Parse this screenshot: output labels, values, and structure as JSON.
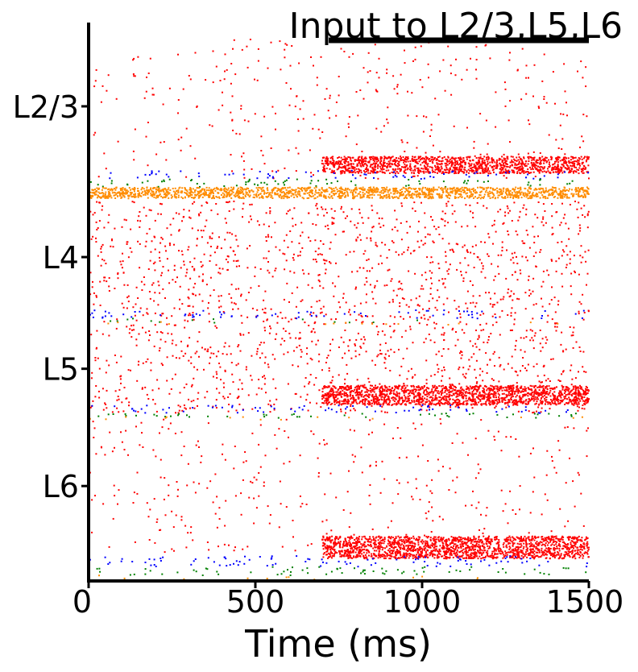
{
  "chart_data": {
    "type": "scatter",
    "title": "Input to L2/3,L5,L6",
    "xlabel": "Time (ms)",
    "ylabel": "",
    "xlim": [
      0,
      1500
    ],
    "ylim": [
      0,
      100
    ],
    "x_ticks": [
      0,
      500,
      1000,
      1500
    ],
    "y_ticks": [
      {
        "value": 85,
        "label": "L2/3"
      },
      {
        "value": 58,
        "label": "L4"
      },
      {
        "value": 38,
        "label": "L5"
      },
      {
        "value": 17,
        "label": "L6"
      }
    ],
    "stimulus_bar": {
      "start": 720,
      "end": 1500
    },
    "colors": {
      "red": "#ff0000",
      "blue": "#0000ff",
      "green": "#008000",
      "orange": "#ff8c00"
    },
    "series": [
      {
        "color": "red",
        "y_range": [
          72,
          97
        ],
        "t_range": [
          0,
          1500
        ],
        "density": "sparse"
      },
      {
        "color": "red",
        "y_range": [
          73,
          76
        ],
        "t_range": [
          700,
          1500
        ],
        "density": "dense"
      },
      {
        "color": "blue",
        "y_range": [
          72,
          73.5
        ],
        "t_range": [
          0,
          1500
        ],
        "density": "medium"
      },
      {
        "color": "green",
        "y_range": [
          70.5,
          72
        ],
        "t_range": [
          0,
          1500
        ],
        "density": "medium"
      },
      {
        "color": "orange",
        "y_range": [
          68.5,
          70.5
        ],
        "t_range": [
          0,
          1500
        ],
        "density": "dense"
      },
      {
        "color": "red",
        "y_range": [
          46,
          68
        ],
        "t_range": [
          0,
          1500
        ],
        "density": "medium"
      },
      {
        "color": "blue",
        "y_range": [
          47,
          48.5
        ],
        "t_range": [
          0,
          1500
        ],
        "density": "medium"
      },
      {
        "color": "green",
        "y_range": [
          46.2,
          47
        ],
        "t_range": [
          0,
          1500
        ],
        "density": "sparse"
      },
      {
        "color": "orange",
        "y_range": [
          45.8,
          46.4
        ],
        "t_range": [
          0,
          1500
        ],
        "density": "sparse"
      },
      {
        "color": "red",
        "y_range": [
          30,
          46
        ],
        "t_range": [
          0,
          1500
        ],
        "density": "medium"
      },
      {
        "color": "red",
        "y_range": [
          31.5,
          35
        ],
        "t_range": [
          700,
          1500
        ],
        "density": "dense"
      },
      {
        "color": "blue",
        "y_range": [
          30,
          31.5
        ],
        "t_range": [
          0,
          1500
        ],
        "density": "medium"
      },
      {
        "color": "green",
        "y_range": [
          29.2,
          30
        ],
        "t_range": [
          0,
          1500
        ],
        "density": "medium"
      },
      {
        "color": "orange",
        "y_range": [
          28.8,
          29.4
        ],
        "t_range": [
          0,
          1500
        ],
        "density": "sparse"
      },
      {
        "color": "red",
        "y_range": [
          5,
          29
        ],
        "t_range": [
          0,
          1500
        ],
        "density": "sparse"
      },
      {
        "color": "red",
        "y_range": [
          4,
          8
        ],
        "t_range": [
          700,
          1500
        ],
        "density": "dense"
      },
      {
        "color": "blue",
        "y_range": [
          2.5,
          4.5
        ],
        "t_range": [
          0,
          1500
        ],
        "density": "medium"
      },
      {
        "color": "green",
        "y_range": [
          1,
          2.5
        ],
        "t_range": [
          0,
          1500
        ],
        "density": "medium"
      },
      {
        "color": "orange",
        "y_range": [
          0,
          1
        ],
        "t_range": [
          0,
          1500
        ],
        "density": "sparse"
      }
    ]
  }
}
